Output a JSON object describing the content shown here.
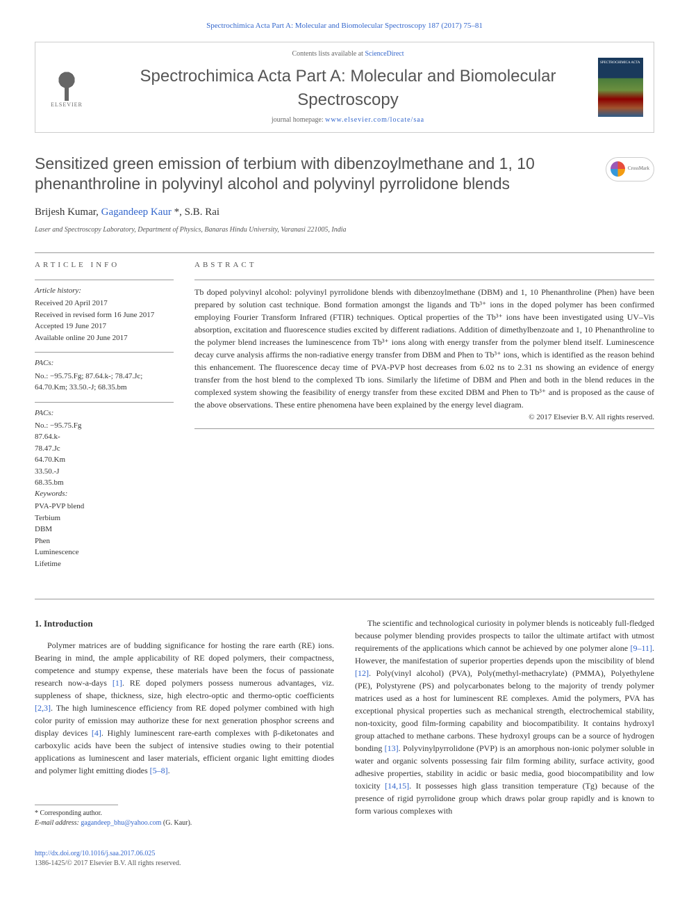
{
  "top_link": {
    "journal": "Spectrochimica Acta Part A: Molecular and Biomolecular Spectroscopy",
    "citation": "187 (2017) 75–81"
  },
  "header": {
    "elsevier_label": "ELSEVIER",
    "contents_prefix": "Contents lists available at ",
    "contents_link": "ScienceDirect",
    "journal_name": "Spectrochimica Acta Part A: Molecular and Biomolecular Spectroscopy",
    "homepage_prefix": "journal homepage: ",
    "homepage_url": "www.elsevier.com/locate/saa",
    "cover_text": "SPECTROCHIMICA ACTA"
  },
  "crossmark_label": "CrossMark",
  "title": "Sensitized green emission of terbium with dibenzoylmethane and 1, 10 phenanthroline in polyvinyl alcohol and polyvinyl pyrrolidone blends",
  "authors_html": "Brijesh Kumar, Gagandeep Kaur *, S.B. Rai",
  "authors": {
    "a1": "Brijesh Kumar, ",
    "a2": "Gagandeep Kaur",
    "a2_mark": " *",
    "a3": ", S.B. Rai"
  },
  "affiliation": "Laser and Spectroscopy Laboratory, Department of Physics, Banaras Hindu University, Varanasi 221005, India",
  "info": {
    "heading": "ARTICLE INFO",
    "history_label": "Article history:",
    "history": [
      "Received 20 April 2017",
      "Received in revised form 16 June 2017",
      "Accepted 19 June 2017",
      "Available online 20 June 2017"
    ],
    "pacs_label": "PACs:",
    "pacs_inline": "No.: −95.75.Fg; 87.64.k-; 78.47.Jc; 64.70.Km; 33.50.-J; 68.35.bm",
    "pacs_label2": "PACs:",
    "pacs_list": [
      "No.: −95.75.Fg",
      "87.64.k-",
      "78.47.Jc",
      "64.70.Km",
      "33.50.-J",
      "68.35.bm"
    ],
    "keywords_label": "Keywords:",
    "keywords": [
      "PVA-PVP blend",
      "Terbium",
      "DBM",
      "Phen",
      "Luminescence",
      "Lifetime"
    ]
  },
  "abstract": {
    "heading": "ABSTRACT",
    "text": "Tb doped polyvinyl alcohol: polyvinyl pyrrolidone blends with dibenzoylmethane (DBM) and 1, 10 Phenanthroline (Phen) have been prepared by solution cast technique. Bond formation amongst the ligands and Tb³⁺ ions in the doped polymer has been confirmed employing Fourier Transform Infrared (FTIR) techniques. Optical properties of the Tb³⁺ ions have been investigated using UV–Vis absorption, excitation and fluorescence studies excited by different radiations. Addition of dimethylbenzoate and 1, 10 Phenanthroline to the polymer blend increases the luminescence from Tb³⁺ ions along with energy transfer from the polymer blend itself. Luminescence decay curve analysis affirms the non-radiative energy transfer from DBM and Phen to Tb³⁺ ions, which is identified as the reason behind this enhancement. The fluorescence decay time of PVA-PVP host decreases from 6.02 ns to 2.31 ns showing an evidence of energy transfer from the host blend to the complexed Tb ions. Similarly the lifetime of DBM and Phen and both in the blend reduces in the complexed system showing the feasibility of energy transfer from these excited DBM and Phen to Tb³⁺ and is proposed as the cause of the above observations. These entire phenomena have been explained by the energy level diagram.",
    "copyright": "© 2017 Elsevier B.V. All rights reserved."
  },
  "intro": {
    "heading": "1. Introduction",
    "p1_a": "Polymer matrices are of budding significance for hosting the rare earth (RE) ions. Bearing in mind, the ample applicability of RE doped polymers, their compactness, competence and stumpy expense, these materials have been the focus of passionate research now-a-days ",
    "p1_ref1": "[1]",
    "p1_b": ". RE doped polymers possess numerous advantages, viz. suppleness of shape, thickness, size, high electro-optic and thermo-optic coefficients ",
    "p1_ref2": "[2,3]",
    "p1_c": ". The high luminescence efficiency from RE doped polymer combined with high color purity of emission may authorize these for next generation phosphor screens and display devices ",
    "p1_ref3": "[4]",
    "p1_d": ". Highly luminescent rare-earth complexes with β-diketonates and carboxylic acids have been the subject of intensive studies owing to their potential applications as luminescent and laser materials, efficient organic light emitting diodes and polymer light emitting diodes ",
    "p1_ref4": "[5–8]",
    "p1_e": ".",
    "p2_a": "The scientific and technological curiosity in polymer blends is noticeably full-fledged because polymer blending provides prospects to tailor the ultimate artifact with utmost requirements of the applications which cannot be achieved by one polymer alone ",
    "p2_ref1": "[9–11]",
    "p2_b": ". However, the manifestation of superior properties depends upon the miscibility of blend ",
    "p2_ref2": "[12]",
    "p2_c": ". Poly(vinyl alcohol) (PVA), Poly(methyl-methacrylate) (PMMA), Polyethylene (PE), Polystyrene (PS) and polycarbonates belong to the majority of trendy polymer matrices used as a host for luminescent RE complexes. Amid the polymers, PVA has exceptional physical properties such as mechanical strength, electrochemical stability, non-toxicity, good film-forming capability and biocompatibility. It contains hydroxyl group attached to methane carbons. These hydroxyl groups can be a source of hydrogen bonding ",
    "p2_ref3": "[13]",
    "p2_d": ". Polyvinylpyrrolidone (PVP) is an amorphous non-ionic polymer soluble in water and organic solvents possessing fair film forming ability, surface activity, good adhesive properties, stability in acidic or basic media, good biocompatibility and low toxicity ",
    "p2_ref4": "[14,15]",
    "p2_e": ". It possesses high glass transition temperature (Tg) because of the presence of rigid pyrrolidone group which draws polar group rapidly and is known to form various complexes with"
  },
  "footnote": {
    "corr_label": "* Corresponding author.",
    "email_label": "E-mail address: ",
    "email": "gagandeep_bhu@yahoo.com",
    "email_suffix": " (G. Kaur)."
  },
  "footer": {
    "doi": "http://dx.doi.org/10.1016/j.saa.2017.06.025",
    "issn_copyright": "1386-1425/© 2017 Elsevier B.V. All rights reserved."
  },
  "colors": {
    "link": "#3366cc",
    "text": "#333333",
    "heading": "#505050",
    "border": "#cccccc"
  }
}
